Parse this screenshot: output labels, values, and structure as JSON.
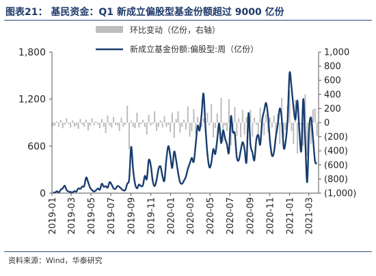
{
  "title": "图表21： 基民资金：Q1 新成立偏股型基金份额超过 9000 亿份",
  "source": "资料来源：Wind，华泰研究",
  "colors": {
    "title": "#1f3a6b",
    "bar": "#bdbdbd",
    "line": "#173c6f"
  },
  "chart_data": {
    "type": "bar+line",
    "legend_position": "top-center",
    "grid": false,
    "x_tick_labels": [
      "2019-01",
      "2019-03",
      "2019-05",
      "2019-07",
      "2019-09",
      "2019-11",
      "2020-01",
      "2020-03",
      "2020-05",
      "2020-07",
      "2020-09",
      "2020-11",
      "2021-01",
      "2021-03"
    ],
    "x_range": [
      "2019-01-01",
      "2021-03-31"
    ],
    "left_axis": {
      "ticks": [
        0,
        600,
        1200,
        1800
      ],
      "tick_labels": [
        "0",
        "600",
        "1,200",
        "1,800"
      ],
      "range": [
        0,
        1800
      ]
    },
    "right_axis": {
      "ticks": [
        -1000,
        -800,
        -600,
        -400,
        -200,
        0,
        200,
        400,
        600,
        800,
        1000
      ],
      "tick_labels": [
        "(1,000)",
        "(800)",
        "(600)",
        "(400)",
        "(200)",
        "0",
        "200",
        "400",
        "600",
        "800",
        "1,000"
      ],
      "range": [
        -1000,
        1000
      ]
    },
    "series": [
      {
        "name": "环比变动（亿份，右轴）",
        "type": "bar",
        "axis": "right",
        "x_start": "2019-01-04",
        "x_end": "2021-03-26",
        "values": [
          -50,
          -40,
          20,
          -60,
          40,
          -80,
          -30,
          60,
          -20,
          -70,
          30,
          -60,
          -40,
          -90,
          50,
          -30,
          -60,
          40,
          -110,
          -50,
          60,
          -40,
          20,
          -30,
          -80,
          50,
          -60,
          -150,
          100,
          -40,
          -70,
          80,
          -30,
          -40,
          -120,
          70,
          -60,
          -30,
          240,
          -380,
          30,
          -60,
          -80,
          140,
          -70,
          -20,
          40,
          -60,
          -170,
          110,
          -40,
          -20,
          160,
          -120,
          -60,
          30,
          -70,
          90,
          -60,
          -30,
          -130,
          140,
          -220,
          50,
          160,
          -140,
          -60,
          40,
          -100,
          230,
          -200,
          -120,
          190,
          -160,
          80,
          -40,
          -60,
          60,
          -140,
          140,
          -40,
          260,
          -210,
          -80,
          130,
          -160,
          350,
          -270,
          -40,
          -120,
          330,
          -320,
          -70,
          220,
          -190,
          60,
          -210,
          180,
          -170,
          80,
          -130,
          180,
          -200,
          70,
          -30,
          -220,
          210,
          -60,
          -180,
          120,
          -140,
          70,
          -70,
          100,
          -170,
          130,
          -300,
          350,
          -200,
          -100,
          240,
          450,
          -120,
          -300,
          320,
          -440,
          -120,
          -30,
          -330,
          400,
          -470,
          -60,
          -300,
          190,
          200,
          -190
        ]
      },
      {
        "name": "新成立基金份额:偏股型:周（亿份）",
        "type": "line",
        "axis": "left",
        "x_start": "2019-01-04",
        "x_end": "2021-03-26",
        "values": [
          10,
          5,
          25,
          8,
          45,
          60,
          95,
          40,
          20,
          15,
          10,
          25,
          20,
          60,
          55,
          85,
          90,
          200,
          140,
          70,
          40,
          20,
          35,
          60,
          45,
          120,
          80,
          90,
          70,
          140,
          110,
          60,
          55,
          90,
          80,
          55,
          35,
          40,
          120,
          180,
          590,
          300,
          120,
          60,
          110,
          90,
          100,
          220,
          180,
          420,
          360,
          160,
          90,
          170,
          310,
          340,
          220,
          160,
          430,
          600,
          480,
          320,
          530,
          420,
          260,
          140,
          120,
          160,
          210,
          310,
          380,
          450,
          400,
          620,
          860,
          800,
          1000,
          1270,
          840,
          500,
          330,
          390,
          560,
          500,
          680,
          890,
          640,
          800,
          700,
          620,
          520,
          980,
          780,
          760,
          460,
          420,
          540,
          650,
          560,
          400,
          1020,
          620,
          520,
          420,
          680,
          740,
          620,
          930,
          1050,
          1150,
          980,
          660,
          480,
          520,
          720,
          880,
          1080,
          950,
          580,
          660,
          940,
          1530,
          1350,
          1100,
          940,
          1180,
          800,
          540,
          1200,
          680,
          140,
          820,
          960,
          700,
          410,
          380
        ]
      }
    ]
  }
}
